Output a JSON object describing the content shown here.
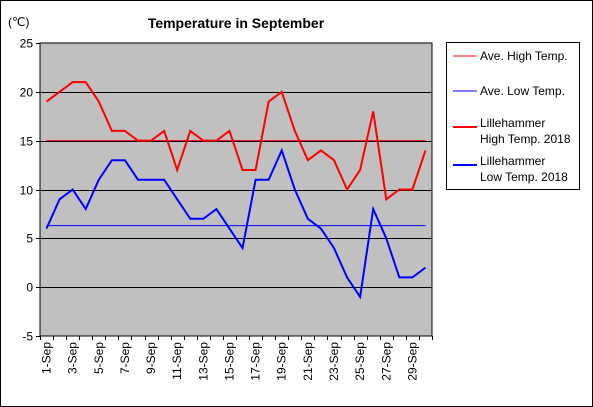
{
  "chart_data": {
    "type": "line",
    "title": "Temperature in September",
    "ylabel": "(℃)",
    "xlabel": "",
    "ylim": [
      -5,
      25
    ],
    "yticks": [
      -5,
      0,
      5,
      10,
      15,
      20,
      25
    ],
    "grid": true,
    "legend_position": "right",
    "x": [
      "1-Sep",
      "2-Sep",
      "3-Sep",
      "4-Sep",
      "5-Sep",
      "6-Sep",
      "7-Sep",
      "8-Sep",
      "9-Sep",
      "10-Sep",
      "11-Sep",
      "12-Sep",
      "13-Sep",
      "14-Sep",
      "15-Sep",
      "16-Sep",
      "17-Sep",
      "18-Sep",
      "19-Sep",
      "20-Sep",
      "21-Sep",
      "22-Sep",
      "23-Sep",
      "24-Sep",
      "25-Sep",
      "26-Sep",
      "27-Sep",
      "28-Sep",
      "29-Sep",
      "30-Sep"
    ],
    "xtick_labels": [
      "1-Sep",
      "3-Sep",
      "5-Sep",
      "7-Sep",
      "9-Sep",
      "11-Sep",
      "13-Sep",
      "15-Sep",
      "17-Sep",
      "19-Sep",
      "21-Sep",
      "23-Sep",
      "25-Sep",
      "27-Sep",
      "29-Sep"
    ],
    "series": [
      {
        "name": "Ave. High Temp.",
        "color": "#ff0000",
        "width": "thin",
        "values": [
          15,
          15,
          15,
          15,
          15,
          15,
          15,
          15,
          15,
          15,
          15,
          15,
          15,
          15,
          15,
          15,
          15,
          15,
          15,
          15,
          15,
          15,
          15,
          15,
          15,
          15,
          15,
          15,
          15,
          15
        ]
      },
      {
        "name": "Ave. Low Temp.",
        "color": "#0000ff",
        "width": "thin",
        "values": [
          6.3,
          6.3,
          6.3,
          6.3,
          6.3,
          6.3,
          6.3,
          6.3,
          6.3,
          6.3,
          6.3,
          6.3,
          6.3,
          6.3,
          6.3,
          6.3,
          6.3,
          6.3,
          6.3,
          6.3,
          6.3,
          6.3,
          6.3,
          6.3,
          6.3,
          6.3,
          6.3,
          6.3,
          6.3,
          6.3
        ]
      },
      {
        "name": "Lillehammer\nHigh Temp. 2018",
        "color": "#ff0000",
        "width": "thick",
        "values": [
          19,
          20,
          21,
          21,
          19,
          16,
          16,
          15,
          15,
          16,
          12,
          16,
          15,
          15,
          16,
          12,
          12,
          19,
          20,
          16,
          13,
          14,
          13,
          10,
          12,
          18,
          9,
          10,
          10,
          14
        ]
      },
      {
        "name": "Lillehammer\nLow Temp. 2018",
        "color": "#0000ff",
        "width": "thick",
        "values": [
          6,
          9,
          10,
          8,
          11,
          13,
          13,
          11,
          11,
          11,
          9,
          7,
          7,
          8,
          6,
          4,
          11,
          11,
          14,
          10,
          7,
          6,
          4,
          1,
          -1,
          8,
          5,
          1,
          1,
          2
        ]
      }
    ]
  }
}
